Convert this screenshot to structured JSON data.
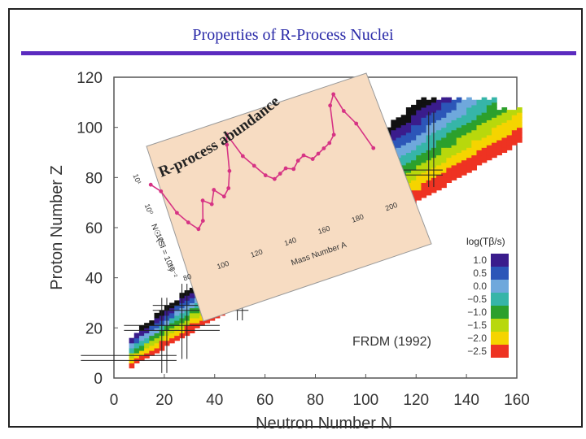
{
  "slide_title": "Properties of R-Process Nuclei",
  "chart_data": {
    "type": "heatmap",
    "xlabel": "Neutron Number N",
    "ylabel": "Proton Number Z",
    "xlim": [
      0,
      160
    ],
    "ylim": [
      0,
      120
    ],
    "x_ticks": [
      "0",
      "20",
      "40",
      "60",
      "80",
      "100",
      "120",
      "140",
      "160"
    ],
    "y_ticks": [
      "0",
      "20",
      "40",
      "60",
      "80",
      "100",
      "120"
    ],
    "annotation": "FRDM (1992)",
    "colorbar": {
      "title": "log(Tβ/s)",
      "levels": [
        "1.0",
        "0.5",
        "0.0",
        "−0.5",
        "−1.0",
        "−1.5",
        "−2.0",
        "−2.5"
      ],
      "colors": [
        "#3a1c8c",
        "#2c56b8",
        "#6fa8dc",
        "#36b5a8",
        "#2ca02c",
        "#b8d80c",
        "#f5d400",
        "#ee3322"
      ]
    },
    "magic_numbers": {
      "N": [
        20,
        28,
        50,
        82,
        126
      ],
      "Z": [
        8,
        20,
        28,
        50,
        82
      ]
    },
    "inset": {
      "title": "R-process abundance",
      "xlabel": "Mass Number A",
      "ylabel": "N☉ (Si = 10⁶)",
      "x_ticks": [
        "80",
        "100",
        "120",
        "140",
        "160",
        "180",
        "200"
      ],
      "y_ticks": [
        "10⁻²",
        "10⁻¹",
        "10⁰",
        "10¹"
      ],
      "x": [
        80,
        84,
        88,
        92,
        96,
        100,
        104,
        108,
        112,
        116,
        120,
        124,
        128,
        130,
        134,
        138,
        142,
        146,
        150,
        154,
        158,
        162,
        166,
        170,
        174,
        178,
        182,
        186,
        190,
        194,
        196,
        200,
        204
      ],
      "log_abundance": [
        0.6,
        0.3,
        -0.5,
        -0.9,
        -1.2,
        -1.0,
        -0.4,
        -0.6,
        -0.2,
        -0.5,
        -0.3,
        0.2,
        1.0,
        1.3,
        0.5,
        0.1,
        -0.3,
        -0.5,
        -0.4,
        -0.3,
        -0.4,
        -0.2,
        -0.1,
        -0.3,
        -0.2,
        -0.1,
        0.0,
        0.2,
        1.1,
        1.4,
        0.8,
        0.3,
        -0.6
      ]
    }
  }
}
